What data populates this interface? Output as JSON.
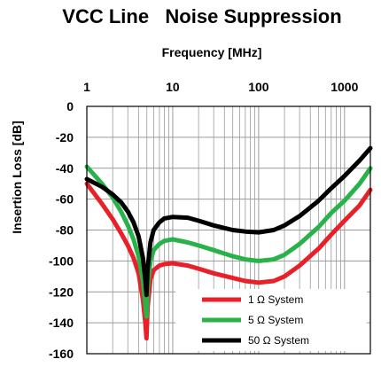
{
  "chart_data": {
    "type": "line",
    "title": "VCC Line   Noise Suppression",
    "xlabel": "Frequency [MHz]",
    "ylabel": "Insertion Loss [dB]",
    "xscale": "log",
    "xaxis_position": "top",
    "xlim": [
      1,
      2000
    ],
    "ylim": [
      -160,
      0
    ],
    "x_ticks": [
      1,
      10,
      100,
      1000
    ],
    "x_tick_labels": [
      "1",
      "10",
      "100",
      "1000"
    ],
    "y_ticks": [
      0,
      -20,
      -40,
      -60,
      -80,
      -100,
      -120,
      -140,
      -160
    ],
    "y_tick_labels": [
      "0",
      "-20",
      "-40",
      "-60",
      "-80",
      "-100",
      "-120",
      "-140",
      "-160"
    ],
    "grid": true,
    "legend_position": "bottom-right",
    "series": [
      {
        "name": "1 Ω System",
        "color": "#e8202a",
        "points": [
          [
            1,
            -50
          ],
          [
            1.5,
            -63
          ],
          [
            2,
            -73
          ],
          [
            2.5,
            -82
          ],
          [
            3,
            -90
          ],
          [
            3.5,
            -98
          ],
          [
            4,
            -108
          ],
          [
            4.5,
            -125
          ],
          [
            4.8,
            -140
          ],
          [
            4.95,
            -150
          ],
          [
            5.1,
            -130
          ],
          [
            5.5,
            -112
          ],
          [
            6,
            -106
          ],
          [
            7,
            -103
          ],
          [
            8,
            -102
          ],
          [
            10,
            -101.5
          ],
          [
            15,
            -103
          ],
          [
            20,
            -105
          ],
          [
            30,
            -108
          ],
          [
            50,
            -111
          ],
          [
            70,
            -113
          ],
          [
            100,
            -114
          ],
          [
            150,
            -113
          ],
          [
            200,
            -110
          ],
          [
            300,
            -103
          ],
          [
            500,
            -92
          ],
          [
            700,
            -83
          ],
          [
            1000,
            -74
          ],
          [
            1500,
            -64
          ],
          [
            2000,
            -54
          ]
        ]
      },
      {
        "name": "5 Ω System",
        "color": "#2ab24a",
        "points": [
          [
            1,
            -39
          ],
          [
            1.5,
            -50
          ],
          [
            2,
            -59
          ],
          [
            2.5,
            -68
          ],
          [
            3,
            -77
          ],
          [
            3.5,
            -86
          ],
          [
            4,
            -97
          ],
          [
            4.5,
            -113
          ],
          [
            4.8,
            -128
          ],
          [
            4.95,
            -136
          ],
          [
            5.1,
            -118
          ],
          [
            5.5,
            -100
          ],
          [
            6,
            -93
          ],
          [
            7,
            -89
          ],
          [
            8,
            -87
          ],
          [
            10,
            -86
          ],
          [
            15,
            -88
          ],
          [
            20,
            -90
          ],
          [
            30,
            -93
          ],
          [
            50,
            -97
          ],
          [
            70,
            -99
          ],
          [
            100,
            -100
          ],
          [
            150,
            -99
          ],
          [
            200,
            -96
          ],
          [
            300,
            -89
          ],
          [
            500,
            -78
          ],
          [
            700,
            -69
          ],
          [
            1000,
            -61
          ],
          [
            1500,
            -50
          ],
          [
            2000,
            -40
          ]
        ]
      },
      {
        "name": "50 Ω System",
        "color": "#000000",
        "points": [
          [
            1,
            -47
          ],
          [
            1.5,
            -52
          ],
          [
            2,
            -57
          ],
          [
            2.5,
            -62
          ],
          [
            3,
            -68
          ],
          [
            3.5,
            -75
          ],
          [
            4,
            -84
          ],
          [
            4.5,
            -98
          ],
          [
            4.8,
            -112
          ],
          [
            4.95,
            -122
          ],
          [
            5.1,
            -105
          ],
          [
            5.5,
            -88
          ],
          [
            6,
            -80
          ],
          [
            7,
            -75
          ],
          [
            8,
            -72.5
          ],
          [
            10,
            -71.5
          ],
          [
            15,
            -72
          ],
          [
            20,
            -74
          ],
          [
            30,
            -77
          ],
          [
            50,
            -80
          ],
          [
            70,
            -81
          ],
          [
            100,
            -81.5
          ],
          [
            150,
            -80
          ],
          [
            200,
            -77
          ],
          [
            300,
            -71
          ],
          [
            500,
            -61
          ],
          [
            700,
            -53
          ],
          [
            1000,
            -45
          ],
          [
            1500,
            -35
          ],
          [
            2000,
            -27
          ]
        ]
      }
    ]
  }
}
